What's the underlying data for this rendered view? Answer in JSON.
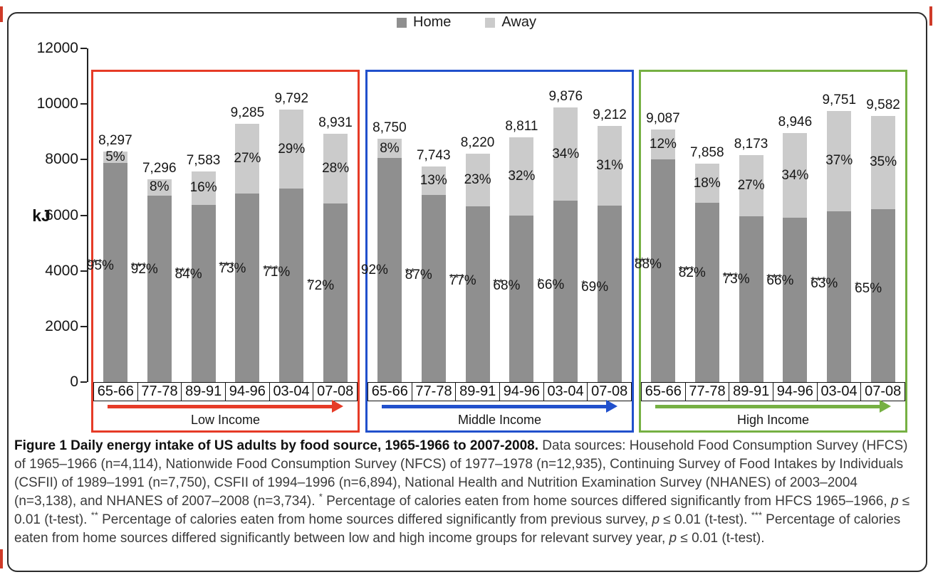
{
  "chart_data": {
    "type": "bar",
    "stacked": true,
    "title": "Daily energy intake of US adults by food source, 1965-1966 to 2007-2008",
    "ylabel": "kJ",
    "ylim": [
      0,
      12000
    ],
    "yticks": [
      12000,
      10000,
      8000,
      6000,
      4000,
      2000,
      0
    ],
    "grid": false,
    "legend": [
      "Home",
      "Away"
    ],
    "legend_position": "top-center",
    "colors": {
      "home": "#8f8f8f",
      "away": "#cbcbcb",
      "low_group": "#e63b27",
      "middle_group": "#2150cc",
      "high_group": "#76b043"
    },
    "categories": [
      "65-66",
      "77-78",
      "89-91",
      "94-96",
      "03-04",
      "07-08"
    ],
    "groups": [
      {
        "id": "low",
        "name": "Low Income",
        "color": "#e63b27",
        "bars": [
          {
            "category": "65-66",
            "total": 8297,
            "total_label": "8,297",
            "away_pct": "5%",
            "home_pct": "95%",
            "asterisks": [
              "***"
            ]
          },
          {
            "category": "77-78",
            "total": 7296,
            "total_label": "7,296",
            "away_pct": "8%",
            "home_pct": "92%",
            "asterisks": [
              "*",
              "**",
              "***"
            ]
          },
          {
            "category": "89-91",
            "total": 7583,
            "total_label": "7,583",
            "away_pct": "16%",
            "home_pct": "84%",
            "asterisks": [
              "*",
              "**",
              "***"
            ]
          },
          {
            "category": "94-96",
            "total": 9285,
            "total_label": "9,285",
            "away_pct": "27%",
            "home_pct": "73%",
            "asterisks": [
              "*",
              "**",
              "***"
            ]
          },
          {
            "category": "03-04",
            "total": 9792,
            "total_label": "9,792",
            "away_pct": "29%",
            "home_pct": "71%",
            "asterisks": [
              "*",
              "***"
            ]
          },
          {
            "category": "07-08",
            "total": 8931,
            "total_label": "8,931",
            "away_pct": "28%",
            "home_pct": "72%",
            "asterisks": [
              "*"
            ]
          }
        ]
      },
      {
        "id": "middle",
        "name": "Middle Income",
        "color": "#2150cc",
        "bars": [
          {
            "category": "65-66",
            "total": 8750,
            "total_label": "8,750",
            "away_pct": "8%",
            "home_pct": "92%",
            "asterisks": []
          },
          {
            "category": "77-78",
            "total": 7743,
            "total_label": "7,743",
            "away_pct": "13%",
            "home_pct": "87%",
            "asterisks": [
              "*",
              "**"
            ]
          },
          {
            "category": "89-91",
            "total": 8220,
            "total_label": "8,220",
            "away_pct": "23%",
            "home_pct": "77%",
            "asterisks": [
              "",
              "***"
            ]
          },
          {
            "category": "94-96",
            "total": 8811,
            "total_label": "8,811",
            "away_pct": "32%",
            "home_pct": "68%",
            "asterisks": [
              "*",
              "**"
            ]
          },
          {
            "category": "03-04",
            "total": 9876,
            "total_label": "9,876",
            "away_pct": "34%",
            "home_pct": "66%",
            "asterisks": [
              "*"
            ]
          },
          {
            "category": "07-08",
            "total": 9212,
            "total_label": "9,212",
            "away_pct": "31%",
            "home_pct": "69%",
            "asterisks": [
              "*"
            ]
          }
        ]
      },
      {
        "id": "high",
        "name": "High Income",
        "color": "#76b043",
        "bars": [
          {
            "category": "65-66",
            "total": 9087,
            "total_label": "9,087",
            "away_pct": "12%",
            "home_pct": "88%",
            "asterisks": [
              "***"
            ]
          },
          {
            "category": "77-78",
            "total": 7858,
            "total_label": "7,858",
            "away_pct": "18%",
            "home_pct": "82%",
            "asterisks": [
              "*",
              "**",
              "***"
            ]
          },
          {
            "category": "89-91",
            "total": 8173,
            "total_label": "8,173",
            "away_pct": "27%",
            "home_pct": "73%",
            "asterisks": [
              "*",
              "**",
              "***"
            ]
          },
          {
            "category": "94-96",
            "total": 8946,
            "total_label": "8,946",
            "away_pct": "34%",
            "home_pct": "66%",
            "asterisks": [
              "*",
              "**",
              "***"
            ]
          },
          {
            "category": "03-04",
            "total": 9751,
            "total_label": "9,751",
            "away_pct": "37%",
            "home_pct": "63%",
            "asterisks": [
              "*",
              "***"
            ]
          },
          {
            "category": "07-08",
            "total": 9582,
            "total_label": "9,582",
            "away_pct": "35%",
            "home_pct": "65%",
            "asterisks": [
              "*"
            ]
          }
        ]
      }
    ]
  },
  "caption": {
    "segments": [
      {
        "t": "Figure 1 Daily energy intake of US adults by food source, 1965-1966 to 2007-2008.",
        "b": true
      },
      {
        "t": " Data sources: Household Food Consumption Survey (HFCS) of 1965–1966 (n=4,114), Nationwide Food Consumption Survey (NFCS) of 1977–1978 (n=12,935), Continuing Survey of Food Intakes by Individuals (CSFII) of 1989–1991 (n=7,750), CSFII of 1994–1996 (n=6,894), National Health and Nutrition Examination Survey (NHANES) of 2003–2004 (n=3,138), and NHANES of 2007–2008 (n=3,734). "
      },
      {
        "t": "*",
        "sup": true
      },
      {
        "t": " Percentage of calories eaten from home sources differed significantly from HFCS 1965–1966, "
      },
      {
        "t": "p",
        "i": true
      },
      {
        "t": " ≤ 0.01 (t-test). "
      },
      {
        "t": "**",
        "sup": true
      },
      {
        "t": " Percentage of calories eaten from home sources differed significantly from previous survey, "
      },
      {
        "t": "p",
        "i": true
      },
      {
        "t": " ≤ 0.01 (t-test). "
      },
      {
        "t": "***",
        "sup": true
      },
      {
        "t": " Percentage of calories eaten from home sources differed significantly between low and high income groups for relevant survey year, "
      },
      {
        "t": "p",
        "i": true
      },
      {
        "t": " ≤ 0.01 (t-test)."
      }
    ]
  }
}
